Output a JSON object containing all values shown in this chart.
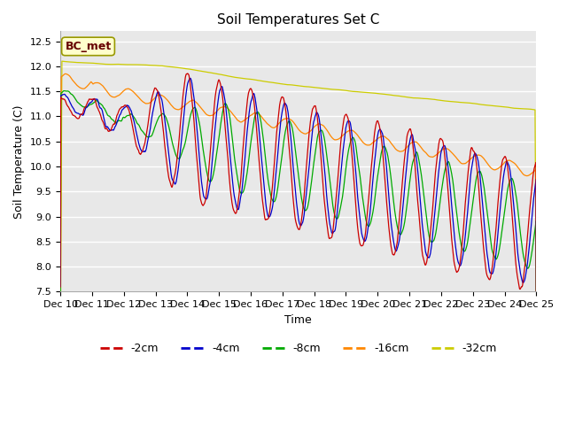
{
  "title": "Soil Temperatures Set C",
  "xlabel": "Time",
  "ylabel": "Soil Temperature (C)",
  "ylim": [
    7.5,
    12.7
  ],
  "xlim_days": [
    0,
    15
  ],
  "annotation": "BC_met",
  "figure_color": "#ffffff",
  "plot_bg_color": "#e8e8e8",
  "grid_color": "#ffffff",
  "series_colors": {
    "-2cm": "#cc0000",
    "-4cm": "#0000cc",
    "-8cm": "#00aa00",
    "-16cm": "#ff8800",
    "-32cm": "#cccc00"
  },
  "xtick_labels": [
    "Dec 10",
    "Dec 11",
    "Dec 12",
    "Dec 13",
    "Dec 14",
    "Dec 15",
    "Dec 16",
    "Dec 17",
    "Dec 18",
    "Dec 19",
    "Dec 20",
    "Dec 21",
    "Dec 22",
    "Dec 23",
    "Dec 24",
    "Dec 25"
  ],
  "ytick_vals": [
    7.5,
    8.0,
    8.5,
    9.0,
    9.5,
    10.0,
    10.5,
    11.0,
    11.5,
    12.0,
    12.5
  ]
}
